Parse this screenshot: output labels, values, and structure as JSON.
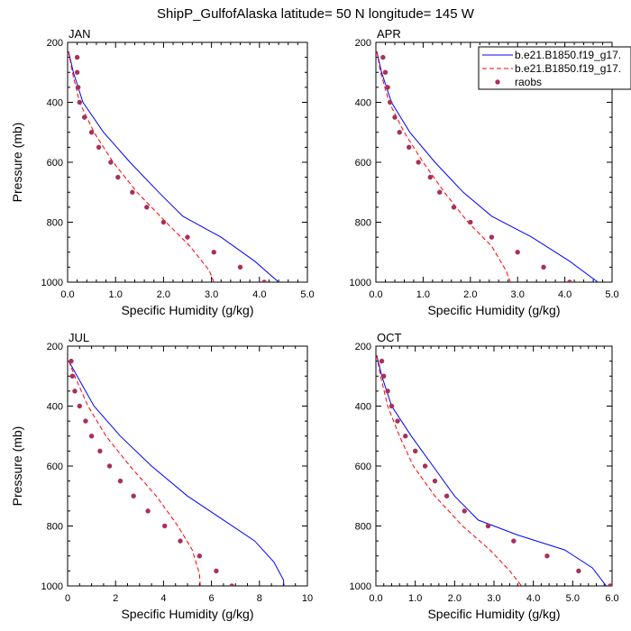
{
  "title": "ShipP_GulfofAlaska  latitude= 50 N longitude= 145 W",
  "colors": {
    "model1": "#0000ff",
    "model2": "#ff0000",
    "obs": "#a8305a"
  },
  "chart_data": [
    {
      "type": "line",
      "panel": "JAN",
      "xlabel": "Specific Humidity (g/kg)",
      "ylabel": "Pressure (mb)",
      "xlim": [
        0,
        5
      ],
      "ylim": [
        1000,
        200
      ],
      "y_reversed": true,
      "xticks": [
        "0.0",
        "1.0",
        "2.0",
        "3.0",
        "4.0",
        "5.0"
      ],
      "yticks": [
        "200",
        "400",
        "600",
        "800",
        "1000"
      ],
      "legend": null,
      "series": [
        {
          "style": "solid",
          "color": "#0000ff",
          "x": [
            0.02,
            0.12,
            0.32,
            0.75,
            1.3,
            1.9,
            2.4,
            3.2,
            3.9,
            4.4
          ],
          "y": [
            230,
            300,
            400,
            500,
            600,
            700,
            780,
            850,
            930,
            1000
          ]
        },
        {
          "style": "dashed",
          "color": "#ff0000",
          "x": [
            0.02,
            0.1,
            0.25,
            0.55,
            0.95,
            1.45,
            2.05,
            2.55,
            2.95,
            3.05
          ],
          "y": [
            230,
            300,
            400,
            500,
            600,
            700,
            800,
            880,
            960,
            1000
          ]
        },
        {
          "style": "markers",
          "color": "#a8305a",
          "x": [
            0.2,
            0.2,
            0.22,
            0.25,
            0.35,
            0.5,
            0.65,
            0.9,
            1.05,
            1.35,
            1.65,
            2.0,
            2.5,
            3.05,
            3.6,
            4.1
          ],
          "y": [
            250,
            300,
            350,
            400,
            450,
            500,
            550,
            600,
            650,
            700,
            750,
            800,
            850,
            900,
            950,
            1000
          ]
        }
      ]
    },
    {
      "type": "line",
      "panel": "APR",
      "xlabel": "Specific Humidity (g/kg)",
      "ylabel": "",
      "xlim": [
        0,
        5
      ],
      "ylim": [
        1000,
        200
      ],
      "y_reversed": true,
      "xticks": [
        "0.0",
        "1.0",
        "2.0",
        "3.0",
        "4.0",
        "5.0"
      ],
      "yticks": [
        "200",
        "400",
        "600",
        "800",
        "1000"
      ],
      "legend": {
        "position": "top-right",
        "entries": [
          "b.e21.B1850.f19_g17.",
          "b.e21.B1850.f19_g17.",
          "raobs"
        ]
      },
      "series": [
        {
          "name": "b.e21.B1850.f19_g17.",
          "style": "solid",
          "color": "#0000ff",
          "x": [
            0.02,
            0.12,
            0.33,
            0.72,
            1.25,
            1.85,
            2.45,
            3.3,
            4.1,
            4.7
          ],
          "y": [
            230,
            300,
            400,
            500,
            600,
            700,
            780,
            850,
            930,
            1000
          ]
        },
        {
          "name": "b.e21.B1850.f19_g17.",
          "style": "dashed",
          "color": "#ff0000",
          "x": [
            0.02,
            0.1,
            0.28,
            0.6,
            1.0,
            1.45,
            1.95,
            2.45,
            2.75,
            2.85
          ],
          "y": [
            230,
            300,
            400,
            500,
            600,
            700,
            800,
            880,
            960,
            1000
          ]
        },
        {
          "name": "raobs",
          "style": "markers",
          "color": "#a8305a",
          "x": [
            0.15,
            0.2,
            0.25,
            0.3,
            0.4,
            0.5,
            0.7,
            0.9,
            1.15,
            1.35,
            1.65,
            2.0,
            2.45,
            3.0,
            3.55,
            4.1
          ],
          "y": [
            250,
            300,
            350,
            400,
            450,
            500,
            550,
            600,
            650,
            700,
            750,
            800,
            850,
            900,
            950,
            1000
          ]
        }
      ]
    },
    {
      "type": "line",
      "panel": "JUL",
      "xlabel": "Specific Humidity (g/kg)",
      "ylabel": "Pressure (mb)",
      "xlim": [
        0,
        10
      ],
      "ylim": [
        1000,
        200
      ],
      "y_reversed": true,
      "xticks": [
        "0",
        "2",
        "4",
        "6",
        "8",
        "10"
      ],
      "yticks": [
        "200",
        "400",
        "600",
        "800",
        "1000"
      ],
      "legend": null,
      "series": [
        {
          "style": "solid",
          "color": "#0000ff",
          "x": [
            0.05,
            0.4,
            1.1,
            2.2,
            3.5,
            5.0,
            6.5,
            7.8,
            8.6,
            9.0,
            9.05
          ],
          "y": [
            250,
            300,
            400,
            500,
            600,
            700,
            780,
            850,
            920,
            980,
            1020
          ]
        },
        {
          "style": "dashed",
          "color": "#ff0000",
          "x": [
            0.05,
            0.3,
            0.85,
            1.6,
            2.6,
            3.7,
            4.6,
            5.2,
            5.5,
            5.55
          ],
          "y": [
            250,
            300,
            400,
            500,
            600,
            700,
            800,
            880,
            960,
            1020
          ]
        },
        {
          "style": "markers",
          "color": "#a8305a",
          "x": [
            0.15,
            0.2,
            0.3,
            0.5,
            0.75,
            1.0,
            1.35,
            1.75,
            2.2,
            2.75,
            3.35,
            4.05,
            4.7,
            5.5,
            6.2,
            6.85
          ],
          "y": [
            250,
            300,
            350,
            400,
            450,
            500,
            550,
            600,
            650,
            700,
            750,
            800,
            850,
            900,
            950,
            1000
          ]
        }
      ]
    },
    {
      "type": "line",
      "panel": "OCT",
      "xlabel": "Specific Humidity (g/kg)",
      "ylabel": "",
      "xlim": [
        0,
        6
      ],
      "ylim": [
        1000,
        200
      ],
      "y_reversed": true,
      "xticks": [
        "0.0",
        "1.0",
        "2.0",
        "3.0",
        "4.0",
        "5.0",
        "6.0"
      ],
      "yticks": [
        "200",
        "400",
        "600",
        "800",
        "1000"
      ],
      "legend": null,
      "series": [
        {
          "style": "solid",
          "color": "#0000ff",
          "x": [
            0.02,
            0.15,
            0.4,
            0.9,
            1.45,
            2.0,
            2.6,
            3.6,
            4.8,
            5.5,
            5.85
          ],
          "y": [
            230,
            300,
            400,
            500,
            600,
            700,
            780,
            830,
            880,
            940,
            1000
          ]
        },
        {
          "style": "dashed",
          "color": "#ff0000",
          "x": [
            0.02,
            0.12,
            0.3,
            0.6,
            0.95,
            1.5,
            2.2,
            2.9,
            3.4,
            3.7
          ],
          "y": [
            230,
            300,
            400,
            500,
            600,
            700,
            800,
            880,
            950,
            1000
          ]
        },
        {
          "style": "markers",
          "color": "#a8305a",
          "x": [
            0.15,
            0.2,
            0.3,
            0.4,
            0.55,
            0.75,
            1.0,
            1.25,
            1.5,
            1.8,
            2.25,
            2.85,
            3.5,
            4.35,
            5.15,
            5.95
          ],
          "y": [
            250,
            300,
            350,
            400,
            450,
            500,
            550,
            600,
            650,
            700,
            750,
            800,
            850,
            900,
            950,
            1000
          ]
        }
      ]
    }
  ]
}
